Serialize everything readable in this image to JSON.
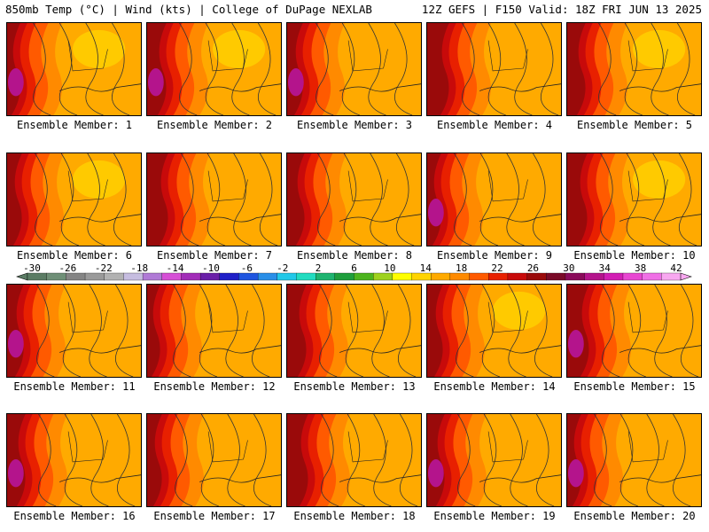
{
  "header": {
    "left_title": "850mb Temp (°C) | Wind (kts) | College of DuPage NEXLAB",
    "right_title": "12Z GEFS | F150 Valid: 18Z FRI JUN 13 2025"
  },
  "colorbar": {
    "tick_labels": [
      "-30",
      "-26",
      "-22",
      "-18",
      "-14",
      "-10",
      "-6",
      "-2",
      "2",
      "6",
      "10",
      "14",
      "18",
      "22",
      "26",
      "30",
      "34",
      "38",
      "42"
    ],
    "colors": [
      "#5b7c64",
      "#6f8f77",
      "#858585",
      "#9a9a9a",
      "#b2b2b2",
      "#c6bde0",
      "#b07ad6",
      "#d64fd6",
      "#a22db8",
      "#6a1fa8",
      "#2020c8",
      "#1f55e0",
      "#2a8fe8",
      "#22c8e8",
      "#22dcc0",
      "#1eb470",
      "#1e9e3c",
      "#4cb41e",
      "#9ed21e",
      "#ffff00",
      "#ffd400",
      "#ffaa00",
      "#ff8a00",
      "#ff5a00",
      "#e82000",
      "#c80a0a",
      "#9a0a0a",
      "#7a0a28",
      "#8a0a5a",
      "#b4148c",
      "#d21eb4",
      "#e846d2",
      "#f070e6",
      "#f8a8f0"
    ]
  },
  "members": [
    {
      "label": "Ensemble Member: 1"
    },
    {
      "label": "Ensemble Member: 2"
    },
    {
      "label": "Ensemble Member: 3"
    },
    {
      "label": "Ensemble Member: 4"
    },
    {
      "label": "Ensemble Member: 5"
    },
    {
      "label": "Ensemble Member: 6"
    },
    {
      "label": "Ensemble Member: 7"
    },
    {
      "label": "Ensemble Member: 8"
    },
    {
      "label": "Ensemble Member: 9"
    },
    {
      "label": "Ensemble Member: 10"
    },
    {
      "label": "Ensemble Member: 11"
    },
    {
      "label": "Ensemble Member: 12"
    },
    {
      "label": "Ensemble Member: 13"
    },
    {
      "label": "Ensemble Member: 14"
    },
    {
      "label": "Ensemble Member: 15"
    },
    {
      "label": "Ensemble Member: 16"
    },
    {
      "label": "Ensemble Member: 17"
    },
    {
      "label": "Ensemble Member: 18"
    },
    {
      "label": "Ensemble Member: 19"
    },
    {
      "label": "Ensemble Member: 20"
    }
  ]
}
